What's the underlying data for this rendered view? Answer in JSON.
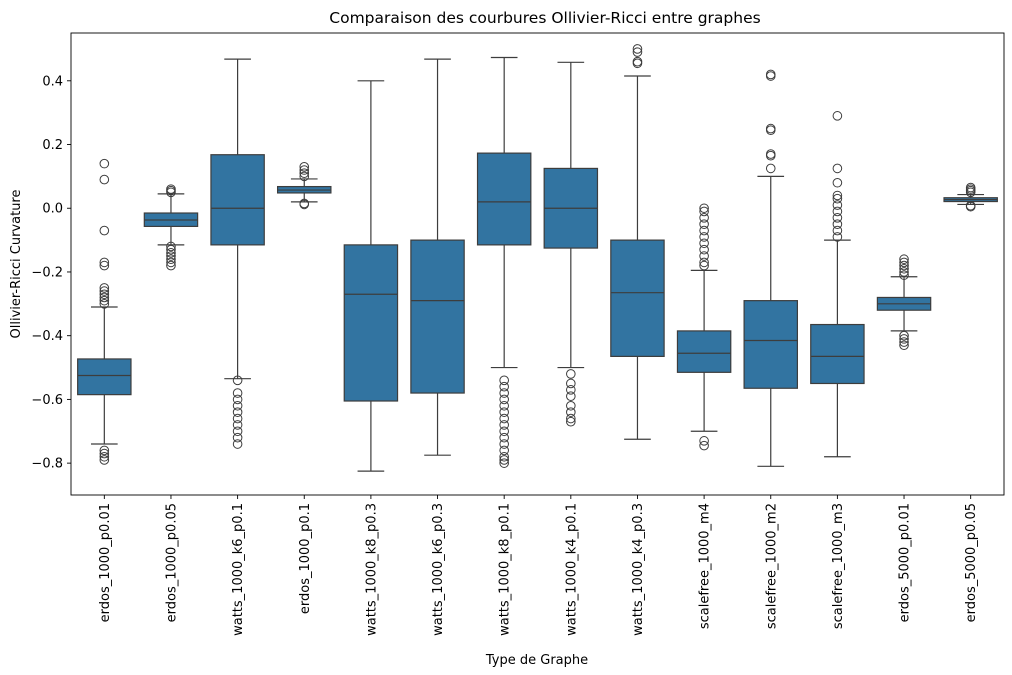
{
  "chart_data": {
    "type": "box",
    "title": "Comparaison des courbures Ollivier-Ricci entre graphes",
    "xlabel": "Type de Graphe",
    "ylabel": "Ollivier-Ricci Curvature",
    "ylim": [
      -0.9,
      0.55
    ],
    "yticks": [
      -0.8,
      -0.6,
      -0.4,
      -0.2,
      0.0,
      0.2,
      0.4
    ],
    "ytick_labels": [
      "−0.8",
      "−0.6",
      "−0.4",
      "−0.2",
      "0.0",
      "0.2",
      "0.4"
    ],
    "box_color": "#3274a1",
    "line_color": "#3d3d3d",
    "grid": false,
    "categories": [
      "erdos_1000_p0.01",
      "erdos_1000_p0.05",
      "watts_1000_k6_p0.1",
      "erdos_1000_p0.1",
      "watts_1000_k8_p0.3",
      "watts_1000_k6_p0.3",
      "watts_1000_k8_p0.1",
      "watts_1000_k4_p0.1",
      "watts_1000_k4_p0.3",
      "scalefree_1000_m4",
      "scalefree_1000_m2",
      "scalefree_1000_m3",
      "erdos_5000_p0.01",
      "erdos_5000_p0.05"
    ],
    "boxes": [
      {
        "whislo": -0.74,
        "q1": -0.585,
        "med": -0.525,
        "q3": -0.473,
        "whishi": -0.31,
        "fliers": [
          0.14,
          0.09,
          -0.07,
          -0.17,
          -0.18,
          -0.25,
          -0.26,
          -0.27,
          -0.28,
          -0.29,
          -0.3,
          -0.76,
          -0.77,
          -0.78,
          -0.79
        ]
      },
      {
        "whislo": -0.115,
        "q1": -0.057,
        "med": -0.037,
        "q3": -0.015,
        "whishi": 0.045,
        "fliers": [
          0.06,
          0.055,
          0.05,
          -0.12,
          -0.13,
          -0.14,
          -0.15,
          -0.16,
          -0.17,
          -0.18
        ]
      },
      {
        "whislo": -0.535,
        "q1": -0.115,
        "med": 0.0,
        "q3": 0.168,
        "whishi": 0.468,
        "fliers": [
          -0.54,
          -0.58,
          -0.6,
          -0.62,
          -0.64,
          -0.66,
          -0.68,
          -0.7,
          -0.72,
          -0.74
        ]
      },
      {
        "whislo": 0.02,
        "q1": 0.048,
        "med": 0.057,
        "q3": 0.068,
        "whishi": 0.092,
        "fliers": [
          0.13,
          0.12,
          0.11,
          0.1,
          0.015,
          0.012
        ]
      },
      {
        "whislo": -0.825,
        "q1": -0.605,
        "med": -0.27,
        "q3": -0.115,
        "whishi": 0.4,
        "fliers": []
      },
      {
        "whislo": -0.775,
        "q1": -0.58,
        "med": -0.29,
        "q3": -0.1,
        "whishi": 0.468,
        "fliers": []
      },
      {
        "whislo": -0.5,
        "q1": -0.115,
        "med": 0.02,
        "q3": 0.173,
        "whishi": 0.473,
        "fliers": [
          -0.54,
          -0.56,
          -0.58,
          -0.6,
          -0.62,
          -0.64,
          -0.66,
          -0.68,
          -0.7,
          -0.72,
          -0.74,
          -0.76,
          -0.78,
          -0.79,
          -0.8
        ]
      },
      {
        "whislo": -0.5,
        "q1": -0.125,
        "med": 0.0,
        "q3": 0.125,
        "whishi": 0.458,
        "fliers": [
          -0.52,
          -0.55,
          -0.57,
          -0.59,
          -0.62,
          -0.64,
          -0.66,
          -0.67
        ]
      },
      {
        "whislo": -0.725,
        "q1": -0.465,
        "med": -0.265,
        "q3": -0.1,
        "whishi": 0.415,
        "fliers": [
          0.5,
          0.49,
          0.46,
          0.455
        ]
      },
      {
        "whislo": -0.7,
        "q1": -0.515,
        "med": -0.455,
        "q3": -0.385,
        "whishi": -0.195,
        "fliers": [
          0.0,
          -0.01,
          -0.03,
          -0.05,
          -0.07,
          -0.09,
          -0.11,
          -0.13,
          -0.15,
          -0.17,
          -0.18,
          -0.73,
          -0.745
        ]
      },
      {
        "whislo": -0.81,
        "q1": -0.565,
        "med": -0.415,
        "q3": -0.29,
        "whishi": 0.1,
        "fliers": [
          0.42,
          0.415,
          0.25,
          0.245,
          0.17,
          0.165,
          0.125
        ]
      },
      {
        "whislo": -0.78,
        "q1": -0.55,
        "med": -0.465,
        "q3": -0.365,
        "whishi": -0.1,
        "fliers": [
          0.29,
          0.125,
          0.08,
          0.04,
          0.03,
          0.01,
          -0.01,
          -0.03,
          -0.05,
          -0.07,
          -0.09
        ]
      },
      {
        "whislo": -0.385,
        "q1": -0.32,
        "med": -0.3,
        "q3": -0.28,
        "whishi": -0.215,
        "fliers": [
          -0.16,
          -0.17,
          -0.18,
          -0.19,
          -0.2,
          -0.21,
          -0.4,
          -0.41,
          -0.42,
          -0.43
        ]
      },
      {
        "whislo": 0.012,
        "q1": 0.021,
        "med": 0.027,
        "q3": 0.033,
        "whishi": 0.043,
        "fliers": [
          0.065,
          0.06,
          0.055,
          0.05,
          0.005,
          0.008
        ]
      }
    ]
  }
}
